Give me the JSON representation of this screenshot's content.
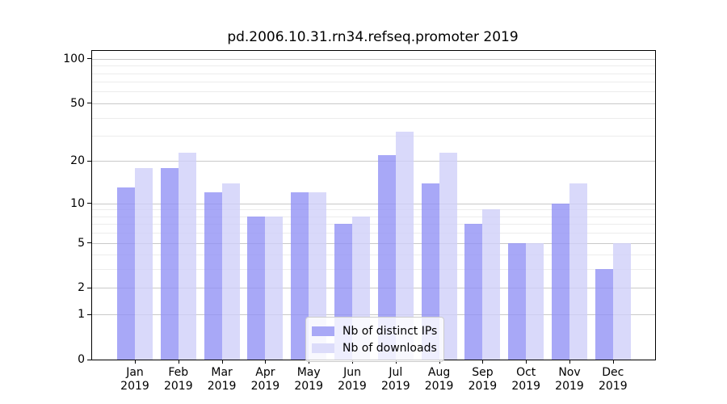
{
  "chart_data": {
    "type": "bar",
    "title": "pd.2006.10.31.rn34.refseq.promoter 2019",
    "categories": [
      "Jan 2019",
      "Feb 2019",
      "Mar 2019",
      "Apr 2019",
      "May 2019",
      "Jun 2019",
      "Jul 2019",
      "Aug 2019",
      "Sep 2019",
      "Oct 2019",
      "Nov 2019",
      "Dec 2019"
    ],
    "series": [
      {
        "name": "Nb of distinct IPs",
        "color": "rgba(146,146,245,0.8)",
        "legend_color": "#a9a9f6",
        "values": [
          13,
          18,
          12,
          8,
          12,
          7,
          22,
          14,
          7,
          5,
          10,
          3
        ]
      },
      {
        "name": "Nb of downloads",
        "color": "rgba(208,208,249,0.8)",
        "legend_color": "#dcdcfa",
        "values": [
          18,
          23,
          14,
          8,
          12,
          8,
          32,
          23,
          9,
          5,
          14,
          5
        ]
      }
    ],
    "xlabel": "",
    "ylabel": "",
    "y_axis": {
      "scale": "log1p",
      "ticks": [
        0,
        1,
        2,
        5,
        10,
        20,
        50,
        100
      ],
      "minor_gridlines": [
        3,
        4,
        6,
        7,
        8,
        9,
        30,
        40,
        60,
        70,
        80,
        90
      ],
      "ylim": [
        0,
        113
      ]
    },
    "grid": true,
    "legend_position": "lower center-left inside plot"
  }
}
